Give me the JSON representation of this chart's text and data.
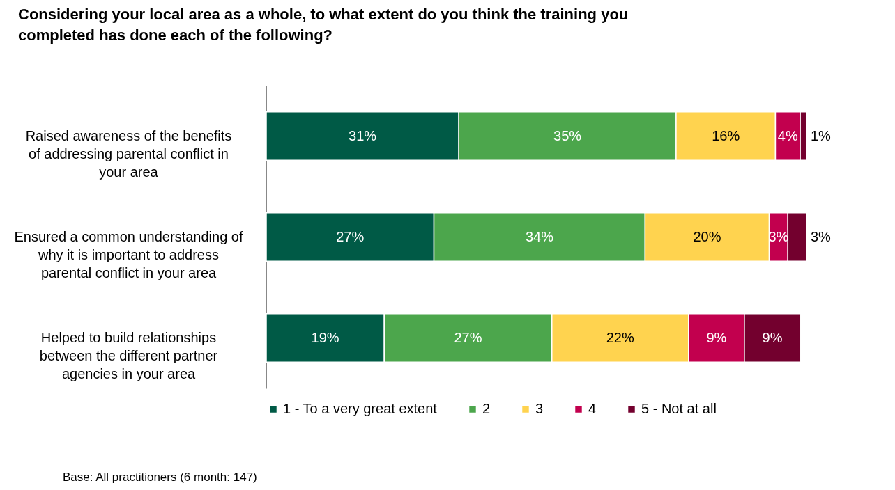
{
  "chart_data": {
    "type": "bar",
    "orientation": "horizontal",
    "stacked": true,
    "title": "Considering your local area as a whole, to what extent do you think the training you completed has done each of the following?",
    "categories": [
      "Raised awareness of the benefits of addressing parental conflict in your area",
      "Ensured a common understanding of why it is important to address parental conflict in your area",
      "Helped to build relationships between the different partner agencies in your area"
    ],
    "series": [
      {
        "name": "1 - To a very great extent",
        "color": "#005a46",
        "values": [
          31,
          27,
          19
        ],
        "value_labels": [
          "31%",
          "27%",
          "19%"
        ]
      },
      {
        "name": "2",
        "color": "#4ca64c",
        "values": [
          35,
          34,
          27
        ],
        "value_labels": [
          "35%",
          "34%",
          "27%"
        ]
      },
      {
        "name": "3",
        "color": "#ffd34f",
        "values": [
          16,
          20,
          22
        ],
        "value_labels": [
          "16%",
          "20%",
          "22%"
        ]
      },
      {
        "name": "4",
        "color": "#c2004e",
        "values": [
          4,
          3,
          9
        ],
        "value_labels": [
          "4%",
          "3%",
          "9%"
        ]
      },
      {
        "name": "5 - Not at all",
        "color": "#73002e",
        "values": [
          1,
          3,
          9
        ],
        "value_labels": [
          "1%",
          "3%",
          "9%"
        ]
      }
    ],
    "legend": "bottom",
    "annotations": [
      "Base: All practitioners (6 month: 147)"
    ]
  }
}
